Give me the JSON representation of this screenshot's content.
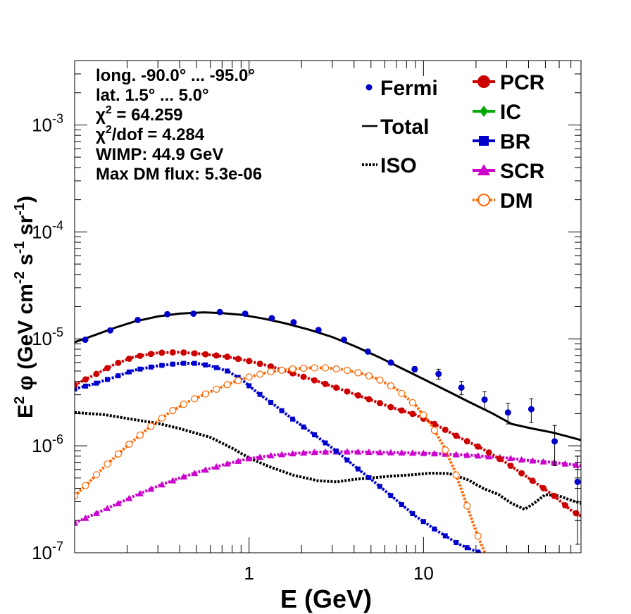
{
  "chart_data": {
    "type": "scatter",
    "xlabel": "E (GeV)",
    "ylabel": {
      "base": "E",
      "sup1": "2",
      "phi": " φ (GeV cm",
      "sup2": "-2",
      "mid": " s",
      "sup3": "-1",
      "end": " sr",
      "sup4": "-1",
      "close": ")"
    },
    "x_scale": "log",
    "y_scale": "log",
    "xlim": [
      0.1,
      80
    ],
    "ylim": [
      1e-07,
      0.004
    ],
    "x_ticks": [
      {
        "v": 1,
        "label": "1"
      },
      {
        "v": 10,
        "label": "10"
      }
    ],
    "y_ticks": [
      {
        "v": 1e-07,
        "base": "10",
        "exp": "-7"
      },
      {
        "v": 1e-06,
        "base": "10",
        "exp": "-6"
      },
      {
        "v": 1e-05,
        "base": "10",
        "exp": "-5"
      },
      {
        "v": 0.0001,
        "base": "10",
        "exp": "-4"
      },
      {
        "v": 0.001,
        "base": "10",
        "exp": "-3"
      }
    ],
    "info": [
      {
        "text": "long. -90.0° ... -95.0°"
      },
      {
        "text": "lat. 1.5° ... 5.0°"
      },
      {
        "pre": "χ",
        "sup": "2",
        "post": " = 64.259"
      },
      {
        "pre": "χ",
        "sup": "2",
        "post": "/dof = 4.284"
      },
      {
        "text": "WIMP: 44.9 GeV"
      },
      {
        "text": "Max DM flux: 5.3e-06"
      }
    ],
    "legend": [
      {
        "label": "Fermi",
        "marker": "dot",
        "color": "#0000cc"
      },
      {
        "label": "Total",
        "marker": "line",
        "color": "#000000"
      },
      {
        "label": "ISO",
        "marker": "dotted",
        "color": "#000000"
      },
      {
        "label": "PCR",
        "marker": "circle",
        "color": "#cc0000"
      },
      {
        "label": "IC",
        "marker": "diamond",
        "color": "#00aa00"
      },
      {
        "label": "BR",
        "marker": "square",
        "color": "#0000cc"
      },
      {
        "label": "SCR",
        "marker": "triangle",
        "color": "#cc00cc"
      },
      {
        "label": "DM",
        "marker": "opencircle",
        "color": "#ff6600"
      }
    ],
    "fermi": {
      "color": "#0000cc",
      "points": [
        {
          "x": 0.115,
          "y": 9.8e-06,
          "err": 0
        },
        {
          "x": 0.16,
          "y": 1.2e-05,
          "err": 0
        },
        {
          "x": 0.23,
          "y": 1.5e-05,
          "err": 0
        },
        {
          "x": 0.34,
          "y": 1.7e-05,
          "err": 0
        },
        {
          "x": 0.48,
          "y": 1.72e-05,
          "err": 0
        },
        {
          "x": 0.68,
          "y": 1.78e-05,
          "err": 0
        },
        {
          "x": 0.95,
          "y": 1.72e-05,
          "err": 0
        },
        {
          "x": 1.35,
          "y": 1.56e-05,
          "err": 0
        },
        {
          "x": 1.8,
          "y": 1.43e-05,
          "err": 0
        },
        {
          "x": 2.5,
          "y": 1.21e-05,
          "err": 0
        },
        {
          "x": 3.5,
          "y": 9.8e-06,
          "err": 0
        },
        {
          "x": 4.8,
          "y": 7.6e-06,
          "err": 0
        },
        {
          "x": 6.5,
          "y": 6e-06,
          "err": 0
        },
        {
          "x": 8.9,
          "y": 5.2e-06,
          "err": 3e-07
        },
        {
          "x": 12.2,
          "y": 4.7e-06,
          "err": 5e-07
        },
        {
          "x": 16.5,
          "y": 3.5e-06,
          "err": 5e-07
        },
        {
          "x": 22.4,
          "y": 2.7e-06,
          "err": 5e-07
        },
        {
          "x": 30.5,
          "y": 2.05e-06,
          "err": 4.5e-07
        },
        {
          "x": 41.5,
          "y": 2.2e-06,
          "err": 5.5e-07
        },
        {
          "x": 56.5,
          "y": 1.1e-06,
          "err": 4.5e-07
        },
        {
          "x": 76.5,
          "y": 4.6e-07,
          "err": 3.4e-07
        }
      ]
    },
    "total": {
      "color": "#000000",
      "x": [
        0.1,
        0.13,
        0.17,
        0.22,
        0.3,
        0.4,
        0.55,
        0.7,
        0.9,
        1.2,
        1.6,
        2.2,
        3.0,
        4.0,
        5.5,
        7.5,
        10,
        14,
        18,
        25,
        32,
        42,
        55,
        70,
        80
      ],
      "y": [
        9.3e-06,
        1.08e-05,
        1.27e-05,
        1.45e-05,
        1.62e-05,
        1.72e-05,
        1.77e-05,
        1.74e-05,
        1.68e-05,
        1.55e-05,
        1.4e-05,
        1.22e-05,
        1.04e-05,
        8.6e-06,
        6.8e-06,
        5.3e-06,
        4.2e-06,
        3.2e-06,
        2.6e-06,
        2e-06,
        1.6e-06,
        1.45e-06,
        1.33e-06,
        1.2e-06,
        1.13e-06
      ]
    },
    "iso": {
      "color": "#000000",
      "x": [
        0.1,
        0.15,
        0.2,
        0.3,
        0.4,
        0.6,
        0.8,
        1.0,
        1.3,
        1.8,
        2.5,
        3.2,
        4.0,
        5.0,
        6.5,
        8.5,
        11,
        14,
        18,
        22,
        27,
        32,
        38,
        43,
        50,
        60,
        70,
        80
      ],
      "y": [
        2.05e-06,
        1.95e-06,
        1.8e-06,
        1.62e-06,
        1.45e-06,
        1.2e-06,
        9.5e-07,
        7.7e-07,
        6.4e-07,
        5.3e-07,
        4.7e-07,
        4.6e-07,
        4.85e-07,
        5e-07,
        5.2e-07,
        5.35e-07,
        5.55e-07,
        5.5e-07,
        4.8e-07,
        4e-07,
        3.5e-07,
        2.9e-07,
        2.55e-07,
        2.9e-07,
        3.5e-07,
        3.4e-07,
        3.1e-07,
        2.9e-07
      ]
    },
    "pcr": {
      "color": "#cc0000",
      "x": [
        0.1,
        0.13,
        0.17,
        0.22,
        0.3,
        0.4,
        0.55,
        0.75,
        1.0,
        1.4,
        1.9,
        2.6,
        3.5,
        4.8,
        6.5,
        9,
        12,
        16,
        22,
        30,
        40,
        55,
        70,
        80
      ],
      "y": [
        3.7e-06,
        4.6e-06,
        5.8e-06,
        6.8e-06,
        7.4e-06,
        7.5e-06,
        7.2e-06,
        6.8e-06,
        6.2e-06,
        5.4e-06,
        4.6e-06,
        3.9e-06,
        3.3e-06,
        2.75e-06,
        2.3e-06,
        1.95e-06,
        1.55e-06,
        1.2e-06,
        9.3e-07,
        6.9e-07,
        5e-07,
        3.5e-07,
        2.5e-07,
        2.2e-07
      ]
    },
    "br": {
      "color": "#0000cc",
      "x": [
        0.1,
        0.13,
        0.17,
        0.22,
        0.3,
        0.4,
        0.5,
        0.6,
        0.75,
        0.9,
        1.1,
        1.4,
        1.8,
        2.4,
        3.2,
        4.2,
        5.5,
        7,
        9,
        12,
        16,
        20,
        23
      ],
      "y": [
        3.4e-06,
        3.8e-06,
        4.4e-06,
        5.1e-06,
        5.6e-06,
        5.9e-06,
        5.9e-06,
        5.6e-06,
        5e-06,
        4.2e-06,
        3.2e-06,
        2.4e-06,
        1.75e-06,
        1.25e-06,
        8.8e-07,
        6.1e-07,
        4.3e-07,
        3.1e-07,
        2.2e-07,
        1.6e-07,
        1.2e-07,
        1.03e-07,
        9.5e-08
      ]
    },
    "scr": {
      "color": "#cc00cc",
      "x": [
        0.1,
        0.13,
        0.17,
        0.22,
        0.3,
        0.4,
        0.55,
        0.75,
        1.0,
        1.4,
        2.0,
        2.8,
        4.0,
        5.5,
        8,
        11,
        15,
        20,
        30,
        40,
        55,
        70,
        80
      ],
      "y": [
        1.9e-07,
        2.3e-07,
        2.8e-07,
        3.4e-07,
        4.2e-07,
        5e-07,
        5.9e-07,
        6.8e-07,
        7.6e-07,
        8.2e-07,
        8.6e-07,
        8.8e-07,
        8.8e-07,
        8.7e-07,
        8.6e-07,
        8.5e-07,
        8.3e-07,
        8.1e-07,
        7.7e-07,
        7.3e-07,
        7e-07,
        6.7e-07,
        6.5e-07
      ]
    },
    "dm": {
      "color": "#ff6600",
      "x": [
        0.1,
        0.12,
        0.15,
        0.2,
        0.27,
        0.35,
        0.45,
        0.6,
        0.8,
        1.0,
        1.3,
        1.7,
        2.2,
        2.8,
        3.5,
        4.5,
        5.5,
        7,
        9,
        11,
        13,
        15,
        17,
        19,
        21,
        22.5
      ],
      "y": [
        3.4e-07,
        4.5e-07,
        6.5e-07,
        1e-06,
        1.5e-06,
        2.05e-06,
        2.6e-06,
        3.2e-06,
        3.9e-06,
        4.4e-06,
        4.9e-06,
        5.2e-06,
        5.35e-06,
        5.35e-06,
        5.15e-06,
        4.7e-06,
        4.2e-06,
        3.4e-06,
        2.4e-06,
        1.6e-06,
        1e-06,
        6e-07,
        3.4e-07,
        2e-07,
        1.3e-07,
        1e-07
      ]
    }
  }
}
